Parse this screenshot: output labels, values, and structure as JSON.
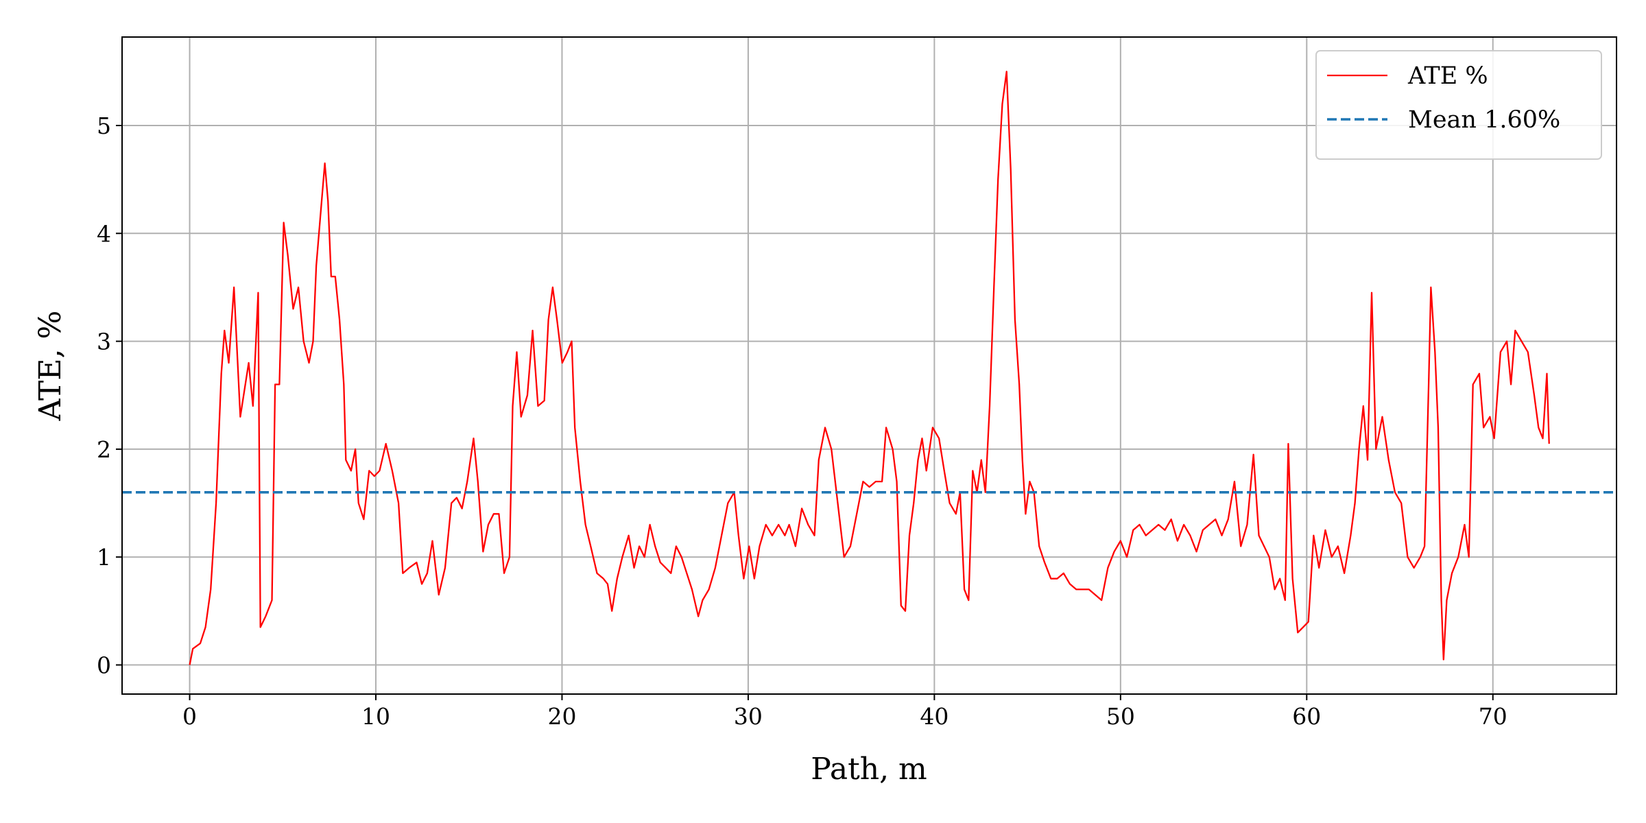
{
  "chart_data": {
    "type": "line",
    "xlabel": "Path, m",
    "ylabel": "ATE, %",
    "xlim": [
      -3.63,
      76.64
    ],
    "ylim": [
      -0.27,
      5.82
    ],
    "xticks": [
      0,
      10,
      20,
      30,
      40,
      50,
      60,
      70
    ],
    "yticks": [
      0,
      1,
      2,
      3,
      4,
      5
    ],
    "grid": true,
    "legend": "upper right",
    "x": [
      0,
      0.17,
      0.57,
      0.85,
      1.13,
      1.42,
      1.7,
      1.87,
      2.1,
      2.38,
      2.72,
      3.17,
      3.4,
      3.68,
      3.8,
      4.08,
      4.42,
      4.59,
      4.82,
      5.05,
      5.27,
      5.56,
      5.84,
      6.12,
      6.41,
      6.63,
      6.8,
      7.09,
      7.26,
      7.43,
      7.6,
      7.82,
      8.05,
      8.28,
      8.39,
      8.67,
      8.9,
      9.07,
      9.35,
      9.64,
      9.92,
      10.2,
      10.54,
      10.88,
      11.22,
      11.45,
      11.79,
      12.19,
      12.47,
      12.76,
      13.04,
      13.38,
      13.72,
      14.06,
      14.34,
      14.63,
      14.91,
      15.25,
      15.48,
      15.76,
      16.04,
      16.33,
      16.61,
      16.89,
      17.18,
      17.35,
      17.57,
      17.8,
      18.14,
      18.42,
      18.71,
      19.05,
      19.27,
      19.5,
      19.73,
      20.01,
      20.29,
      20.52,
      20.69,
      20.98,
      21.26,
      21.54,
      21.88,
      22.22,
      22.45,
      22.68,
      22.96,
      23.24,
      23.58,
      23.87,
      24.15,
      24.43,
      24.72,
      25.0,
      25.28,
      25.57,
      25.85,
      26.13,
      26.42,
      26.7,
      26.98,
      27.32,
      27.55,
      27.89,
      28.23,
      28.57,
      28.91,
      29.25,
      29.48,
      29.76,
      30.05,
      30.33,
      30.61,
      30.95,
      31.29,
      31.63,
      31.97,
      32.2,
      32.54,
      32.88,
      33.22,
      33.56,
      33.79,
      34.13,
      34.47,
      34.81,
      35.15,
      35.49,
      35.83,
      36.17,
      36.51,
      36.85,
      37.19,
      37.41,
      37.76,
      37.98,
      38.21,
      38.44,
      38.66,
      38.89,
      39.12,
      39.34,
      39.57,
      39.91,
      40.25,
      40.53,
      40.82,
      41.16,
      41.38,
      41.61,
      41.84,
      42.06,
      42.29,
      42.52,
      42.74,
      42.97,
      43.2,
      43.42,
      43.65,
      43.88,
      44.1,
      44.33,
      44.56,
      44.73,
      44.9,
      45.12,
      45.35,
      45.63,
      45.92,
      46.26,
      46.6,
      46.94,
      47.28,
      47.62,
      47.96,
      48.3,
      48.64,
      48.98,
      49.32,
      49.66,
      50.0,
      50.34,
      50.68,
      51.02,
      51.36,
      51.7,
      52.04,
      52.38,
      52.72,
      53.06,
      53.4,
      53.74,
      54.08,
      54.42,
      54.76,
      55.1,
      55.44,
      55.78,
      56.12,
      56.46,
      56.8,
      57.14,
      57.43,
      57.71,
      57.99,
      58.28,
      58.56,
      58.84,
      59.01,
      59.24,
      59.52,
      59.81,
      60.09,
      60.37,
      60.66,
      61.0,
      61.34,
      61.68,
      62.02,
      62.36,
      62.59,
      62.81,
      63.04,
      63.27,
      63.49,
      63.72,
      64.06,
      64.4,
      64.74,
      65.08,
      65.42,
      65.76,
      66.1,
      66.33,
      66.55,
      66.67,
      66.89,
      67.06,
      67.23,
      67.35,
      67.52,
      67.8,
      68.14,
      68.48,
      68.71,
      68.93,
      69.27,
      69.5,
      69.84,
      70.07,
      70.41,
      70.75,
      70.97,
      71.2,
      71.54,
      71.88,
      72.22,
      72.45,
      72.68,
      72.9,
      73.02
    ],
    "series": [
      {
        "name": "ATE %",
        "color": "#ff0000",
        "values": [
          0.0,
          0.15,
          0.2,
          0.35,
          0.7,
          1.5,
          2.7,
          3.1,
          2.8,
          3.5,
          2.3,
          2.8,
          2.4,
          3.45,
          0.35,
          0.45,
          0.6,
          2.6,
          2.6,
          4.1,
          3.8,
          3.3,
          3.5,
          3.0,
          2.8,
          3.0,
          3.7,
          4.3,
          4.65,
          4.3,
          3.6,
          3.6,
          3.2,
          2.6,
          1.9,
          1.8,
          2.0,
          1.5,
          1.35,
          1.8,
          1.75,
          1.8,
          2.05,
          1.8,
          1.5,
          0.85,
          0.9,
          0.95,
          0.75,
          0.85,
          1.15,
          0.65,
          0.9,
          1.5,
          1.55,
          1.45,
          1.7,
          2.1,
          1.7,
          1.05,
          1.3,
          1.4,
          1.4,
          0.85,
          1.0,
          2.4,
          2.9,
          2.3,
          2.5,
          3.1,
          2.4,
          2.45,
          3.2,
          3.5,
          3.2,
          2.8,
          2.9,
          3.0,
          2.2,
          1.7,
          1.3,
          1.1,
          0.85,
          0.8,
          0.75,
          0.5,
          0.8,
          1.0,
          1.2,
          0.9,
          1.1,
          1.0,
          1.3,
          1.1,
          0.95,
          0.9,
          0.85,
          1.1,
          1.0,
          0.85,
          0.7,
          0.45,
          0.6,
          0.7,
          0.9,
          1.2,
          1.5,
          1.6,
          1.2,
          0.8,
          1.1,
          0.8,
          1.1,
          1.3,
          1.2,
          1.3,
          1.2,
          1.3,
          1.1,
          1.45,
          1.3,
          1.2,
          1.9,
          2.2,
          2.0,
          1.5,
          1.0,
          1.1,
          1.4,
          1.7,
          1.65,
          1.7,
          1.7,
          2.2,
          2.0,
          1.7,
          0.55,
          0.5,
          1.2,
          1.5,
          1.9,
          2.1,
          1.8,
          2.2,
          2.1,
          1.8,
          1.5,
          1.4,
          1.6,
          0.7,
          0.6,
          1.8,
          1.6,
          1.9,
          1.6,
          2.4,
          3.5,
          4.5,
          5.2,
          5.5,
          4.6,
          3.2,
          2.6,
          1.9,
          1.4,
          1.7,
          1.6,
          1.1,
          0.95,
          0.8,
          0.8,
          0.85,
          0.75,
          0.7,
          0.7,
          0.7,
          0.65,
          0.6,
          0.9,
          1.05,
          1.15,
          1.0,
          1.25,
          1.3,
          1.2,
          1.25,
          1.3,
          1.25,
          1.35,
          1.15,
          1.3,
          1.2,
          1.05,
          1.25,
          1.3,
          1.35,
          1.2,
          1.35,
          1.7,
          1.1,
          1.3,
          1.95,
          1.2,
          1.1,
          1.0,
          0.7,
          0.8,
          0.6,
          2.05,
          0.8,
          0.3,
          0.35,
          0.4,
          1.2,
          0.9,
          1.25,
          1.0,
          1.1,
          0.85,
          1.2,
          1.5,
          2.0,
          2.4,
          1.9,
          3.45,
          2.0,
          2.3,
          1.9,
          1.6,
          1.5,
          1.0,
          0.9,
          1.0,
          1.1,
          2.6,
          3.5,
          2.9,
          2.2,
          0.6,
          0.05,
          0.6,
          0.85,
          1.0,
          1.3,
          1.0,
          2.6,
          2.7,
          2.2,
          2.3,
          2.1,
          2.9,
          3.0,
          2.6,
          3.1,
          3.0,
          2.9,
          2.5,
          2.2,
          2.1,
          2.7,
          2.05
        ]
      }
    ],
    "mean_line": {
      "name": "Mean 1.60%",
      "color": "#1f77b4",
      "value": 1.6,
      "style": "dashed"
    }
  }
}
